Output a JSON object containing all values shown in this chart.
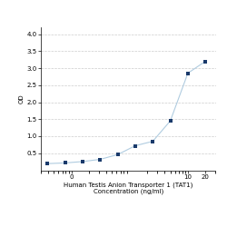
{
  "x_data": [
    0.039,
    0.078,
    0.156,
    0.313,
    0.625,
    1.25,
    2.5,
    5,
    10,
    20
  ],
  "y_data": [
    0.195,
    0.215,
    0.255,
    0.32,
    0.46,
    0.72,
    0.85,
    1.45,
    2.85,
    3.2
  ],
  "xlabel_line1": "Human Testis Anion Transporter 1 (TAT1)",
  "xlabel_line2": "Concentration (ng/ml)",
  "ylabel": "OD",
  "xlim_log": [
    0.03,
    30
  ],
  "ylim": [
    0,
    4.2
  ],
  "yticks": [
    0.5,
    1.0,
    1.5,
    2.0,
    2.5,
    3.0,
    3.5,
    4.0
  ],
  "xticks": [
    0.1,
    10,
    20
  ],
  "xticklabels": [
    "0",
    "10",
    "20"
  ],
  "line_color": "#b0cce0",
  "marker_color": "#1a3a6b",
  "marker_size": 12,
  "grid_color": "#cccccc",
  "background_color": "#ffffff",
  "font_size_label": 5.0,
  "font_size_tick": 5.0,
  "fig_width": 2.5,
  "fig_height": 2.5
}
